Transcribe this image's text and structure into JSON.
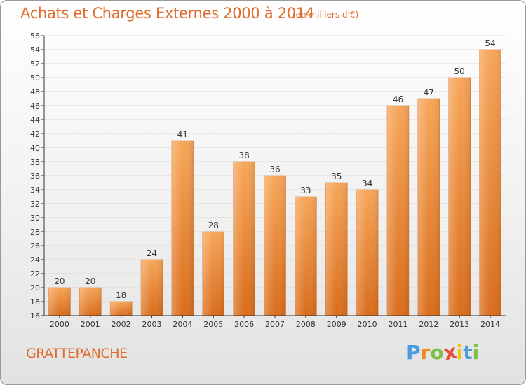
{
  "header": {
    "title": "Achats et Charges Externes 2000 à 2014",
    "unit": "(en milliers d'€)"
  },
  "footer": {
    "commune": "GRATTEPANCHE",
    "logo_letters": [
      "P",
      "r",
      "o",
      "x",
      "i",
      "t",
      "i"
    ],
    "logo_colors": [
      "#4a9be0",
      "#f08a24",
      "#7cc242",
      "#e84b3c",
      "#f5c400",
      "#4a9be0",
      "#7cc242"
    ]
  },
  "colors": {
    "bar": "#f28a2e",
    "bar_light": "#f7a65a",
    "bar_dark": "#d96d1c",
    "axis": "#333333",
    "grid": "#d9d9d9"
  },
  "chart_data": {
    "type": "bar",
    "title": "Achats et Charges Externes 2000 à 2014",
    "subtitle": "(en milliers d'€)",
    "categories": [
      "2000",
      "2001",
      "2002",
      "2003",
      "2004",
      "2005",
      "2006",
      "2007",
      "2008",
      "2009",
      "2010",
      "2011",
      "2012",
      "2013",
      "2014"
    ],
    "values": [
      20,
      20,
      18,
      24,
      41,
      28,
      38,
      36,
      33,
      35,
      34,
      46,
      47,
      50,
      54
    ],
    "ylim": [
      16,
      56
    ],
    "yticks": [
      16,
      18,
      20,
      22,
      24,
      26,
      28,
      30,
      32,
      34,
      36,
      38,
      40,
      42,
      44,
      46,
      48,
      50,
      52,
      54,
      56
    ],
    "grid": true,
    "xlabel": "",
    "ylabel": ""
  }
}
